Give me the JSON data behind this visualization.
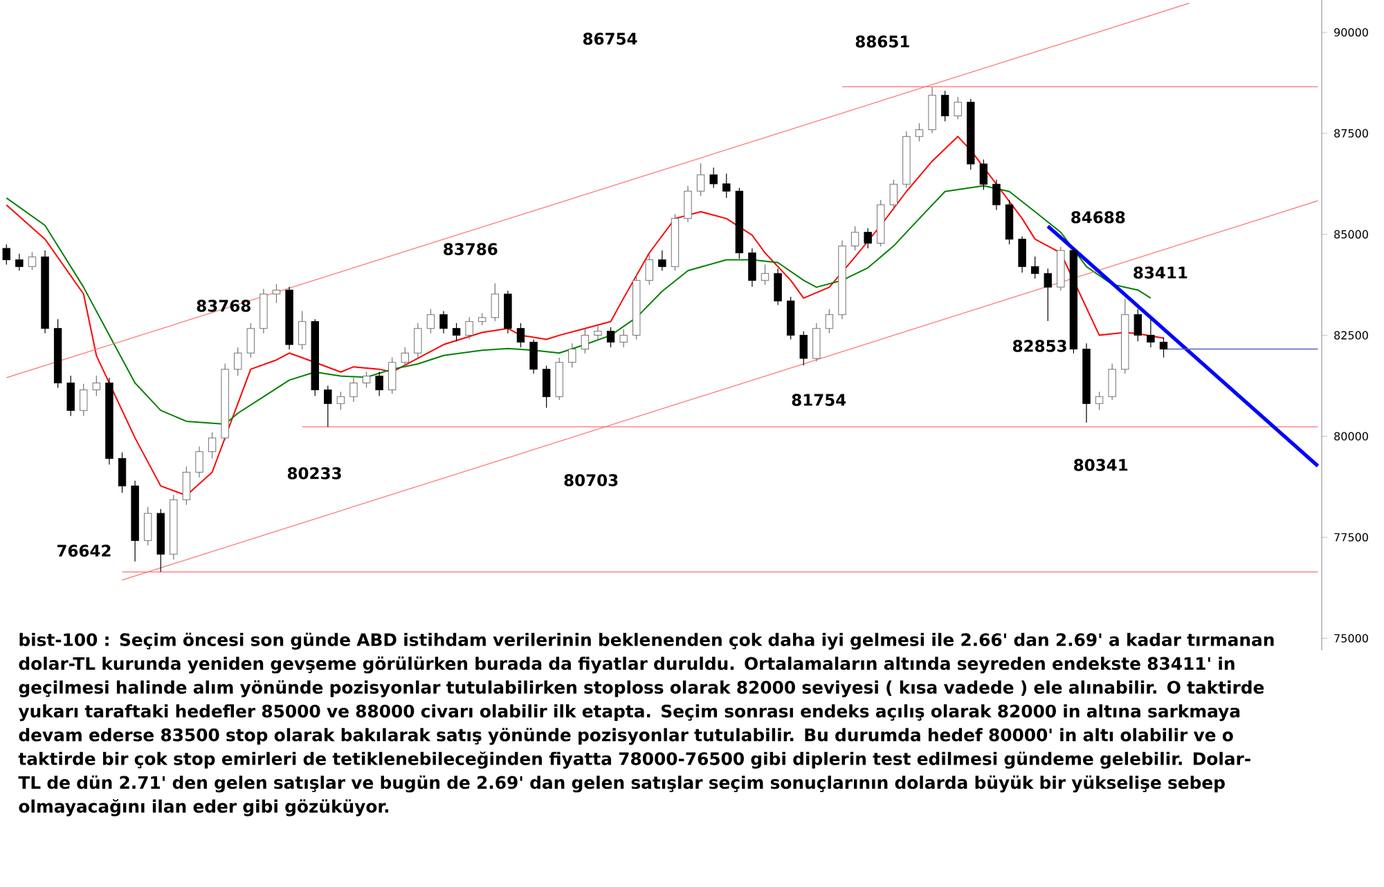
{
  "chart_data": {
    "type": "candlestick",
    "categories": [
      null,
      null,
      null,
      null,
      null,
      null,
      null,
      null,
      null,
      null,
      null,
      null,
      null,
      null,
      null,
      null,
      null,
      null,
      null,
      null,
      null,
      null,
      null,
      null,
      null,
      null,
      null,
      null,
      null,
      null,
      null,
      null,
      null,
      null,
      null,
      null,
      null,
      null,
      null,
      null,
      null,
      null,
      null,
      null,
      null,
      null,
      null,
      null,
      null,
      null,
      null,
      null,
      null,
      null,
      null,
      null,
      null,
      null,
      null,
      null,
      null,
      null,
      null,
      null,
      null,
      null,
      null,
      null,
      null,
      null,
      null,
      null,
      null,
      null,
      null,
      null,
      null,
      null,
      null,
      null,
      null,
      null,
      null,
      null,
      null,
      null,
      null,
      null,
      null,
      null,
      null,
      null,
      null,
      null,
      null,
      null,
      null,
      null,
      null,
      null,
      null,
      null,
      null
    ],
    "ohlc": [
      [
        84650,
        84750,
        84250,
        84370
      ],
      [
        84370,
        84520,
        84100,
        84200
      ],
      [
        84200,
        84560,
        84120,
        84440
      ],
      [
        84440,
        84600,
        82550,
        82670
      ],
      [
        82670,
        82900,
        81200,
        81320
      ],
      [
        81320,
        81500,
        80500,
        80640
      ],
      [
        80640,
        81300,
        80500,
        81150
      ],
      [
        81150,
        81500,
        81000,
        81320
      ],
      [
        81320,
        81450,
        79300,
        79450
      ],
      [
        79450,
        79600,
        78600,
        78770
      ],
      [
        78770,
        78900,
        76900,
        77420
      ],
      [
        77420,
        78250,
        77300,
        78090
      ],
      [
        78090,
        78200,
        76642,
        77080
      ],
      [
        77080,
        78550,
        76950,
        78430
      ],
      [
        78430,
        79250,
        78300,
        79110
      ],
      [
        79110,
        79750,
        78980,
        79620
      ],
      [
        79620,
        80100,
        79450,
        79960
      ],
      [
        79960,
        81800,
        79900,
        81660
      ],
      [
        81660,
        82200,
        81500,
        82060
      ],
      [
        82060,
        82800,
        81950,
        82670
      ],
      [
        82670,
        83650,
        82550,
        83520
      ],
      [
        83520,
        83768,
        83300,
        83620
      ],
      [
        83620,
        83700,
        82150,
        82270
      ],
      [
        82270,
        83100,
        82150,
        82840
      ],
      [
        82840,
        82900,
        81000,
        81150
      ],
      [
        81150,
        81250,
        80233,
        80810
      ],
      [
        80810,
        81100,
        80650,
        80980
      ],
      [
        80980,
        81450,
        80850,
        81320
      ],
      [
        81320,
        81600,
        81200,
        81490
      ],
      [
        81490,
        81600,
        81000,
        81150
      ],
      [
        81150,
        81950,
        81050,
        81830
      ],
      [
        81830,
        82200,
        81700,
        82060
      ],
      [
        82060,
        82800,
        81950,
        82670
      ],
      [
        82670,
        83150,
        82550,
        83010
      ],
      [
        83010,
        83100,
        82550,
        82670
      ],
      [
        82670,
        82800,
        82350,
        82500
      ],
      [
        82500,
        82950,
        82400,
        82840
      ],
      [
        82840,
        83050,
        82750,
        82940
      ],
      [
        82940,
        83786,
        82850,
        83520
      ],
      [
        83520,
        83600,
        82550,
        82670
      ],
      [
        82670,
        82800,
        82200,
        82330
      ],
      [
        82330,
        82400,
        81550,
        81660
      ],
      [
        81660,
        81750,
        80703,
        80980
      ],
      [
        80980,
        81950,
        80900,
        81830
      ],
      [
        81830,
        82300,
        81700,
        82160
      ],
      [
        82160,
        82650,
        82050,
        82500
      ],
      [
        82500,
        82750,
        82400,
        82600
      ],
      [
        82600,
        82700,
        82200,
        82330
      ],
      [
        82330,
        82650,
        82200,
        82500
      ],
      [
        82500,
        84000,
        82400,
        83860
      ],
      [
        83860,
        84500,
        83750,
        84370
      ],
      [
        84370,
        84600,
        84100,
        84200
      ],
      [
        84200,
        85500,
        84100,
        85390
      ],
      [
        85390,
        86200,
        85300,
        86070
      ],
      [
        86070,
        86754,
        85950,
        86470
      ],
      [
        86470,
        86650,
        86150,
        86250
      ],
      [
        86250,
        86500,
        85900,
        86070
      ],
      [
        86070,
        86150,
        84400,
        84540
      ],
      [
        84540,
        84650,
        83700,
        83860
      ],
      [
        83860,
        84250,
        83750,
        84030
      ],
      [
        84030,
        84150,
        83250,
        83350
      ],
      [
        83350,
        83450,
        82400,
        82500
      ],
      [
        82500,
        82600,
        81754,
        81930
      ],
      [
        81930,
        82800,
        81850,
        82670
      ],
      [
        82670,
        83150,
        82550,
        83010
      ],
      [
        83010,
        84850,
        82900,
        84710
      ],
      [
        84710,
        85200,
        84600,
        85050
      ],
      [
        85050,
        85150,
        84650,
        84780
      ],
      [
        84780,
        85850,
        84700,
        85730
      ],
      [
        85730,
        86350,
        85600,
        86240
      ],
      [
        86240,
        87550,
        86150,
        87420
      ],
      [
        87420,
        87750,
        87300,
        87590
      ],
      [
        87590,
        88651,
        87500,
        88440
      ],
      [
        88440,
        88550,
        87800,
        87930
      ],
      [
        87930,
        88400,
        87850,
        88270
      ],
      [
        88270,
        88350,
        86600,
        86740
      ],
      [
        86740,
        86850,
        86100,
        86240
      ],
      [
        86240,
        86350,
        85600,
        85730
      ],
      [
        85730,
        85850,
        84750,
        84880
      ],
      [
        84880,
        84950,
        84050,
        84200
      ],
      [
        84200,
        84450,
        83900,
        84030
      ],
      [
        84030,
        84150,
        82853,
        83690
      ],
      [
        83690,
        84688,
        83600,
        84600
      ],
      [
        84600,
        84650,
        82050,
        82160
      ],
      [
        82160,
        82300,
        80341,
        80810
      ],
      [
        80810,
        81100,
        80650,
        80980
      ],
      [
        80980,
        81800,
        80900,
        81660
      ],
      [
        81660,
        83411,
        81550,
        83010
      ],
      [
        83010,
        83150,
        82350,
        82500
      ],
      [
        82500,
        82900,
        82200,
        82330
      ],
      [
        82330,
        82450,
        81950,
        82160
      ],
      null,
      null,
      null,
      null,
      null,
      null,
      null,
      null,
      null,
      null,
      null,
      null
    ],
    "series": [
      {
        "type": "line",
        "color": "#ff0000",
        "values": [
          85725,
          null,
          null,
          84880,
          null,
          null,
          83520,
          81995,
          null,
          null,
          79960,
          null,
          78770,
          null,
          78535,
          null,
          79110,
          null,
          null,
          81660,
          null,
          81890,
          82060,
          null,
          81830,
          null,
          81590,
          81720,
          null,
          81660,
          81590,
          null,
          81930,
          null,
          82270,
          null,
          null,
          82570,
          null,
          82670,
          82500,
          null,
          82400,
          82500,
          null,
          82670,
          null,
          82840,
          83420,
          null,
          84540,
          null,
          85390,
          null,
          85560,
          null,
          85390,
          null,
          84980,
          84540,
          null,
          83860,
          83420,
          null,
          83690,
          null,
          84440,
          null,
          85220,
          null,
          86060,
          null,
          86810,
          null,
          87420,
          87080,
          null,
          86240,
          null,
          85390,
          84880,
          null,
          84540,
          null,
          null,
          82500,
          null,
          82570,
          82540,
          null,
          82430,
          null,
          null,
          null,
          null,
          null,
          null,
          null,
          null,
          null,
          null,
          null,
          null
        ]
      },
      {
        "type": "line",
        "color": "#008000",
        "values": [
          85900,
          null,
          null,
          85220,
          84710,
          null,
          83690,
          null,
          82500,
          null,
          81320,
          null,
          80640,
          null,
          80370,
          null,
          null,
          80300,
          80570,
          null,
          80980,
          null,
          81390,
          null,
          81590,
          null,
          81490,
          null,
          81460,
          null,
          81660,
          null,
          81790,
          null,
          82000,
          null,
          null,
          82130,
          null,
          82170,
          null,
          82130,
          null,
          82060,
          null,
          82270,
          null,
          82500,
          null,
          82940,
          null,
          83590,
          null,
          84100,
          null,
          null,
          84370,
          null,
          84370,
          null,
          84300,
          null,
          83860,
          83690,
          null,
          83860,
          null,
          84170,
          null,
          84710,
          null,
          85390,
          null,
          86060,
          null,
          null,
          86200,
          null,
          86060,
          null,
          85560,
          null,
          85050,
          null,
          84200,
          null,
          83760,
          null,
          83620,
          83420,
          null,
          null,
          null,
          null,
          null,
          null,
          null,
          null,
          null,
          null,
          null,
          null,
          null
        ]
      },
      {
        "type": "line",
        "color": "#ff7070",
        "values": [
          81450,
          null,
          null,
          null,
          null,
          null,
          null,
          null,
          null,
          null,
          null,
          null,
          null,
          null,
          null,
          null,
          null,
          null,
          null,
          null,
          null,
          null,
          null,
          null,
          null,
          null,
          null,
          null,
          null,
          null,
          null,
          null,
          null,
          null,
          null,
          null,
          null,
          null,
          null,
          null,
          null,
          null,
          null,
          null,
          null,
          null,
          null,
          null,
          null,
          null,
          null,
          null,
          null,
          null,
          null,
          null,
          null,
          null,
          null,
          null,
          null,
          null,
          null,
          null,
          null,
          null,
          null,
          null,
          null,
          null,
          null,
          null,
          null,
          null,
          null,
          null,
          null,
          null,
          null,
          null,
          null,
          null,
          null,
          null,
          null,
          null,
          null,
          null,
          null,
          null,
          null,
          null,
          90720,
          null,
          null,
          null,
          null,
          null,
          null,
          null,
          null,
          null,
          null
        ]
      },
      {
        "type": "line",
        "color": "#ff7070",
        "values": [
          null,
          null,
          null,
          null,
          null,
          null,
          null,
          null,
          null,
          76440,
          null,
          null,
          null,
          null,
          null,
          null,
          null,
          null,
          null,
          null,
          null,
          null,
          null,
          null,
          null,
          null,
          null,
          null,
          null,
          null,
          null,
          null,
          null,
          null,
          null,
          null,
          null,
          null,
          null,
          null,
          null,
          null,
          null,
          null,
          null,
          null,
          null,
          null,
          null,
          null,
          null,
          null,
          null,
          null,
          null,
          null,
          null,
          null,
          null,
          null,
          null,
          null,
          null,
          null,
          null,
          null,
          null,
          null,
          null,
          null,
          null,
          null,
          null,
          null,
          null,
          null,
          null,
          null,
          null,
          null,
          null,
          null,
          null,
          null,
          null,
          null,
          null,
          null,
          null,
          null,
          null,
          null,
          null,
          null,
          null,
          null,
          null,
          null,
          null,
          null,
          null,
          null,
          85830
        ]
      },
      {
        "type": "line",
        "color": "#ff7070",
        "values": [
          null,
          null,
          null,
          null,
          null,
          null,
          null,
          null,
          null,
          null,
          null,
          null,
          null,
          null,
          null,
          null,
          null,
          null,
          null,
          null,
          null,
          null,
          null,
          null,
          null,
          null,
          null,
          null,
          null,
          null,
          null,
          null,
          null,
          null,
          null,
          null,
          null,
          null,
          null,
          null,
          null,
          null,
          null,
          null,
          null,
          null,
          null,
          null,
          null,
          null,
          null,
          null,
          null,
          null,
          null,
          null,
          null,
          null,
          null,
          null,
          null,
          null,
          null,
          null,
          null,
          88651,
          null,
          null,
          null,
          null,
          null,
          null,
          null,
          null,
          null,
          null,
          null,
          null,
          null,
          null,
          null,
          null,
          null,
          null,
          null,
          null,
          null,
          null,
          null,
          null,
          null,
          null,
          null,
          null,
          null,
          null,
          null,
          null,
          null,
          null,
          null,
          null,
          88651
        ]
      },
      {
        "type": "line",
        "color": "#ff7070",
        "values": [
          null,
          null,
          null,
          null,
          null,
          null,
          null,
          null,
          null,
          null,
          null,
          null,
          null,
          null,
          null,
          null,
          null,
          null,
          null,
          null,
          null,
          null,
          null,
          80233,
          null,
          null,
          null,
          null,
          null,
          null,
          null,
          null,
          null,
          null,
          null,
          null,
          null,
          null,
          null,
          null,
          null,
          null,
          null,
          null,
          null,
          null,
          null,
          null,
          null,
          null,
          null,
          null,
          null,
          null,
          null,
          null,
          null,
          null,
          null,
          null,
          null,
          null,
          null,
          null,
          null,
          null,
          null,
          null,
          null,
          null,
          null,
          null,
          null,
          null,
          null,
          null,
          null,
          null,
          null,
          null,
          null,
          null,
          null,
          null,
          null,
          null,
          null,
          null,
          null,
          null,
          null,
          null,
          null,
          null,
          null,
          null,
          null,
          null,
          null,
          null,
          null,
          null,
          80233
        ]
      },
      {
        "type": "line",
        "color": "#ff7070",
        "values": [
          null,
          null,
          null,
          null,
          null,
          null,
          null,
          null,
          null,
          76642,
          null,
          null,
          null,
          null,
          null,
          null,
          null,
          null,
          null,
          null,
          null,
          null,
          null,
          null,
          null,
          null,
          null,
          null,
          null,
          null,
          null,
          null,
          null,
          null,
          null,
          null,
          null,
          null,
          null,
          null,
          null,
          null,
          null,
          null,
          null,
          null,
          null,
          null,
          null,
          null,
          null,
          null,
          null,
          null,
          null,
          null,
          null,
          null,
          null,
          null,
          null,
          null,
          null,
          null,
          null,
          null,
          null,
          null,
          null,
          null,
          null,
          null,
          null,
          null,
          null,
          null,
          null,
          null,
          null,
          null,
          null,
          null,
          null,
          null,
          null,
          null,
          null,
          null,
          null,
          null,
          null,
          null,
          null,
          null,
          null,
          null,
          null,
          null,
          null,
          null,
          null,
          null,
          76642
        ]
      },
      {
        "type": "line",
        "color": "#0000ff",
        "values": [
          null,
          null,
          null,
          null,
          null,
          null,
          null,
          null,
          null,
          null,
          null,
          null,
          null,
          null,
          null,
          null,
          null,
          null,
          null,
          null,
          null,
          null,
          null,
          null,
          null,
          null,
          null,
          null,
          null,
          null,
          null,
          null,
          null,
          null,
          null,
          null,
          null,
          null,
          null,
          null,
          null,
          null,
          null,
          null,
          null,
          null,
          null,
          null,
          null,
          null,
          null,
          null,
          null,
          null,
          null,
          null,
          null,
          null,
          null,
          null,
          null,
          null,
          null,
          null,
          null,
          null,
          null,
          null,
          null,
          null,
          null,
          null,
          null,
          null,
          null,
          null,
          null,
          null,
          null,
          null,
          null,
          85200,
          null,
          null,
          null,
          null,
          null,
          null,
          null,
          null,
          null,
          null,
          null,
          null,
          null,
          null,
          null,
          null,
          null,
          null,
          null,
          null,
          79265
        ]
      },
      {
        "type": "line",
        "color": "#5060c0",
        "values": [
          null,
          null,
          null,
          null,
          null,
          null,
          null,
          null,
          null,
          null,
          null,
          null,
          null,
          null,
          null,
          null,
          null,
          null,
          null,
          null,
          null,
          null,
          null,
          null,
          null,
          null,
          null,
          null,
          null,
          null,
          null,
          null,
          null,
          null,
          null,
          null,
          null,
          null,
          null,
          null,
          null,
          null,
          null,
          null,
          null,
          null,
          null,
          null,
          null,
          null,
          null,
          null,
          null,
          null,
          null,
          null,
          null,
          null,
          null,
          null,
          null,
          null,
          null,
          null,
          null,
          null,
          null,
          null,
          null,
          null,
          null,
          null,
          null,
          null,
          null,
          null,
          null,
          null,
          null,
          null,
          null,
          null,
          null,
          null,
          null,
          null,
          null,
          null,
          null,
          null,
          82160,
          null,
          null,
          null,
          null,
          null,
          null,
          null,
          null,
          null,
          null,
          null,
          82160
        ]
      }
    ],
    "ylim": [
      74700,
      90800
    ],
    "yticks": [
      75000,
      77500,
      80000,
      82500,
      85000,
      87500,
      90000
    ],
    "tick_labels": "y",
    "annotations": [
      "86754",
      "88651",
      "83786",
      "83768",
      "84688",
      "83411",
      "82853",
      "81754",
      "80233",
      "80703",
      "80341",
      "76642",
      "bist-100 : Seçim öncesi son günde ABD istihdam verilerinin beklenenden çok daha iyi gelmesi ile 2.66' dan 2.69' a kadar tırmanan dolar-TL kurunda yeniden gevşeme görülürken burada da fiyatlar duruldu. Ortalamaların altında seyreden endekste 83411' in geçilmesi halinde alım yönünde pozisyonlar tutulabilirken stoploss olarak 82000 seviyesi ( kısa vadede ) ele alınabilir. O taktirde yukarı taraftaki hedefler 85000 ve 88000 civarı olabilir ilk etapta. Seçim sonrası endeks açılış olarak 82000 in altına sarkmaya devam ederse 83500 stop olarak bakılarak satış yönünde pozisyonlar tutulabilir. Bu durumda hedef 80000' in altı olabilir ve o taktirde bir çok stop emirleri de tetiklenebileceğinden fiyatta 78000-76500 gibi diplerin test edilmesi gündeme gelebilir. Dolar-TL de dün 2.71' den gelen satışlar ve bugün de 2.69' dan gelen satışlar seçim sonuçlarının dolarda büyük bir yükselişe sebep olmayacağını ilan eder gibi gözüküyor."
    ]
  }
}
